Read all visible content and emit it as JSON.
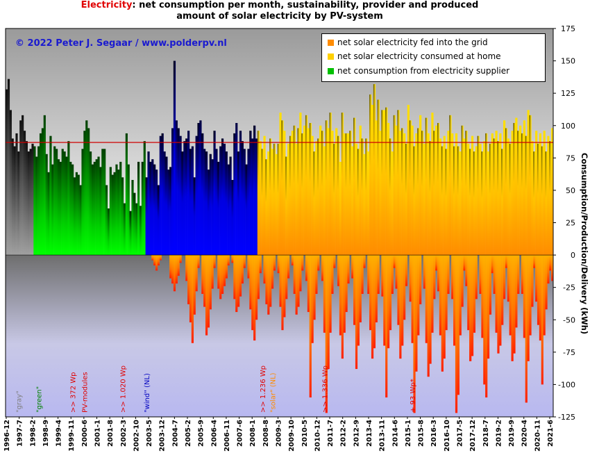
{
  "title": {
    "highlight": "Electricity",
    "line1_rest": ": net consumption per month, sustainability, provider and produced",
    "line2": "amount of solar electricity by PV-system"
  },
  "copyright": "© 2022  Peter J. Segaar / www.polderpv.nl",
  "legend": [
    {
      "label": "net solar electricity fed into the grid",
      "color": "#ff8c00"
    },
    {
      "label": "net solar electricity consumed at home",
      "color": "#ffd000"
    },
    {
      "label": "net consumption from electricity supplier",
      "color": "#00c000"
    }
  ],
  "chart_data": {
    "type": "bar",
    "ylabel": "Consumption/Production/Delivery (kWh)",
    "ylim": [
      -125,
      175
    ],
    "yticks": [
      175,
      150,
      125,
      100,
      75,
      50,
      25,
      0,
      -25,
      -50,
      -75,
      -100,
      -125
    ],
    "reference_line": 87,
    "x_tick_labels": [
      "1996-12",
      "1997-7",
      "1998-2",
      "1998-9",
      "1999-4",
      "1999-11",
      "2000-6",
      "2001-1",
      "2001-8",
      "2002-3",
      "2002-10",
      "2003-5",
      "2003-12",
      "2004-7",
      "2005-2",
      "2005-9",
      "2006-4",
      "2006-11",
      "2007-6",
      "2008-1",
      "2008-8",
      "2009-3",
      "2009-10",
      "2010-5",
      "2010-12",
      "2011-7",
      "2012-2",
      "2012-9",
      "2013-4",
      "2013-11",
      "2014-6",
      "2015-1",
      "2015-8",
      "2016-3",
      "2016-10",
      "2017-5",
      "2017-12",
      "2018-7",
      "2019-2",
      "2019-9",
      "2020-4",
      "2020-11",
      "2021-6"
    ],
    "series": [
      {
        "name": "net solar electricity fed into the grid",
        "color": "#ff8c00"
      },
      {
        "name": "net solar electricity consumed at home",
        "color": "#ffd000"
      },
      {
        "name": "net consumption from electricity supplier",
        "color": "#00c000"
      }
    ],
    "supply_periods": [
      {
        "label": "\"gray\"",
        "from": "1996-12",
        "to": "1998-1",
        "color": "#808080"
      },
      {
        "label": "\"green\"",
        "from": "1998-2",
        "to": "2002-9",
        "color": "#00c000"
      },
      {
        "label": "\"wind\" (NL)",
        "from": "2002-10",
        "to": "2007-5",
        "color": "#0000e0"
      },
      {
        "label": "\"solar\" (NL)",
        "from": "2007-6",
        "to": "2022-2",
        "color": "#ff8c00"
      }
    ],
    "annotations": [
      {
        "text": "\"gray\"",
        "color": "#808080",
        "at": "1997-6"
      },
      {
        "text": "\"green\"",
        "color": "#008000",
        "at": "1998-4"
      },
      {
        "text": ">> 372 Wp",
        "color": "#e00000",
        "at": "1999-9"
      },
      {
        "text": "PV-modules",
        "color": "#e00000",
        "at": "2000-3"
      },
      {
        "text": ">> 1.020 Wp",
        "color": "#e00000",
        "at": "2001-10"
      },
      {
        "text": "\"wind\" (NL)",
        "color": "#0000c0",
        "at": "2002-10"
      },
      {
        "text": ">> 1.236 Wp",
        "color": "#e00000",
        "at": "2007-8"
      },
      {
        "text": "\"solar\" (NL)",
        "color": "#ff8c00",
        "at": "2008-1"
      },
      {
        "text": ">> 1.336 Wp",
        "color": "#e00000",
        "at": "2010-3"
      },
      {
        "text": "+ 93 Wp*",
        "color": "#e00000",
        "at": "2013-11"
      }
    ],
    "monthly_outline": {
      "start": "1996-12",
      "end": "2022-2",
      "consumption_top": [
        128,
        136,
        112,
        90,
        84,
        94,
        80,
        104,
        108,
        96,
        88,
        80,
        82,
        86,
        84,
        76,
        84,
        94,
        98,
        108,
        78,
        64,
        92,
        70,
        84,
        82,
        74,
        72,
        82,
        80,
        76,
        88,
        72,
        70,
        60,
        64,
        62,
        54,
        82,
        96,
        104,
        98,
        80,
        70,
        72,
        74,
        76,
        68,
        82,
        82,
        54,
        36,
        68,
        62,
        64,
        70,
        66,
        72,
        60,
        40,
        94,
        70,
        34,
        58,
        48,
        40,
        72,
        38,
        72,
        88,
        60,
        80,
        72,
        74,
        70,
        66,
        54,
        92,
        94,
        80,
        76,
        66,
        68,
        98,
        150,
        104,
        98,
        92,
        80,
        88,
        90,
        96,
        82,
        84,
        60,
        92,
        102,
        104,
        94,
        82,
        80,
        66,
        78,
        74,
        96,
        82,
        72,
        84,
        90,
        86,
        80,
        70,
        76,
        58,
        94,
        102,
        80,
        96,
        88,
        82,
        70,
        82,
        96,
        90,
        100,
        90,
        96,
        88,
        82,
        92,
        74,
        80,
        90,
        82,
        86,
        78,
        86,
        110,
        104,
        96,
        76,
        86,
        92,
        96,
        100,
        86,
        98,
        110,
        94,
        100,
        108,
        98,
        102,
        92,
        80,
        88,
        90,
        100,
        96,
        84,
        104,
        98,
        110,
        96,
        86,
        98,
        92,
        72,
        110,
        94,
        94,
        94,
        96,
        84,
        106,
        86,
        82,
        100,
        90,
        78,
        90,
        80,
        124,
        116,
        132,
        104,
        120,
        96,
        112,
        112,
        114,
        102,
        90,
        80,
        108,
        100,
        112,
        96,
        98,
        94,
        86,
        116,
        104,
        100,
        84,
        94,
        98,
        108,
        96,
        86,
        106,
        94,
        88,
        110,
        96,
        100,
        102,
        90,
        84,
        92,
        82,
        96,
        108,
        94,
        84,
        94,
        84,
        80,
        100,
        90,
        96,
        86,
        82,
        92,
        80,
        84,
        92,
        86,
        80,
        88,
        94,
        80,
        86,
        94,
        90,
        96,
        88,
        94,
        82,
        104,
        98,
        90,
        86,
        96,
        102,
        106,
        96,
        100,
        94,
        104,
        92,
        112,
        108,
        88,
        80,
        96,
        86,
        94,
        84,
        96,
        80,
        92,
        88,
        98
      ],
      "delivery_bottom": [
        0,
        0,
        0,
        0,
        0,
        0,
        0,
        0,
        0,
        0,
        0,
        0,
        0,
        0,
        0,
        0,
        0,
        0,
        0,
        0,
        0,
        0,
        0,
        0,
        0,
        0,
        0,
        0,
        0,
        0,
        0,
        0,
        0,
        0,
        0,
        0,
        0,
        0,
        0,
        0,
        0,
        0,
        0,
        0,
        0,
        0,
        0,
        0,
        0,
        0,
        0,
        0,
        0,
        0,
        0,
        0,
        0,
        0,
        0,
        0,
        0,
        0,
        0,
        0,
        0,
        0,
        0,
        0,
        0,
        0,
        0,
        0,
        0,
        -4,
        -8,
        -12,
        -8,
        -4,
        0,
        0,
        0,
        0,
        -18,
        -22,
        -28,
        -22,
        -16,
        -6,
        0,
        0,
        -20,
        -38,
        -52,
        -68,
        -46,
        -28,
        -10,
        0,
        -30,
        -40,
        -62,
        -56,
        -42,
        -26,
        -10,
        0,
        -26,
        -34,
        -30,
        -24,
        -18,
        -8,
        0,
        -6,
        -34,
        -44,
        -40,
        -32,
        -22,
        -10,
        0,
        -18,
        -42,
        -58,
        -66,
        -50,
        -34,
        -14,
        0,
        -22,
        -38,
        -46,
        -40,
        -26,
        -12,
        0,
        -14,
        -40,
        -58,
        -48,
        -34,
        -18,
        0,
        -8,
        -30,
        -46,
        -40,
        -28,
        -12,
        0,
        -20,
        -44,
        -110,
        -68,
        -50,
        -30,
        -12,
        0,
        -20,
        -60,
        -122,
        -88,
        -60,
        -30,
        -10,
        0,
        -24,
        -62,
        -80,
        -60,
        -44,
        -22,
        0,
        -18,
        -54,
        -88,
        -70,
        -52,
        -30,
        -10,
        0,
        -30,
        -58,
        -80,
        -72,
        -52,
        -30,
        0,
        -32,
        -70,
        -110,
        -72,
        -58,
        -30,
        -10,
        -26,
        -54,
        -80,
        -70,
        -50,
        -24,
        0,
        -36,
        -68,
        -122,
        -90,
        -62,
        -38,
        0,
        -26,
        -68,
        -94,
        -84,
        -60,
        -34,
        -12,
        -28,
        -62,
        -90,
        -80,
        -58,
        -30,
        0,
        -34,
        -70,
        -122,
        -108,
        -62,
        -40,
        -12,
        -24,
        -58,
        -82,
        -78,
        -60,
        -34,
        0,
        -30,
        -64,
        -100,
        -110,
        -80,
        -46,
        -14,
        -30,
        -60,
        -76,
        -70,
        -54,
        -34,
        -10,
        -36,
        -62,
        -82,
        -76,
        -56,
        -30,
        0,
        -30,
        -64,
        -114,
        -82,
        -62,
        -40,
        -10,
        -36,
        -54,
        -66,
        -100,
        -62,
        -42,
        -22,
        -12,
        -20,
        -46,
        -30,
        -18
      ]
    }
  }
}
